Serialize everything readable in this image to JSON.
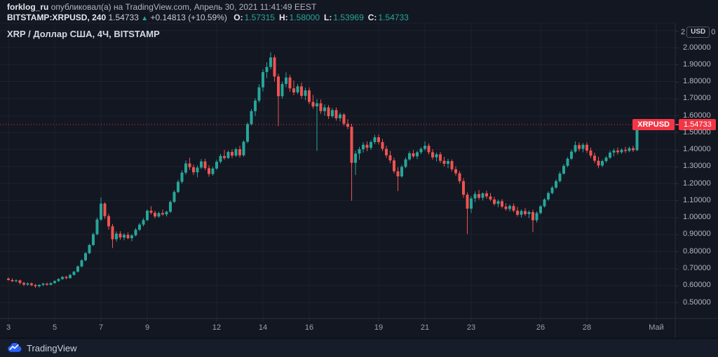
{
  "header": {
    "author": "forklog_ru",
    "published": "опубликовал(а) на TradingView.com, Апрель 30, 2021 11:41:49 EEST",
    "symbol_line": {
      "symbol_interval": "BITSTAMP:XRPUSD, 240",
      "last_price": "1.54733",
      "direction_icon": "▲",
      "change": "+0.14813 (+10.59%)",
      "ohlc": [
        {
          "label": "O:",
          "value": "1.57315"
        },
        {
          "label": "H:",
          "value": "1.58000"
        },
        {
          "label": "L:",
          "value": "1.53969"
        },
        {
          "label": "C:",
          "value": "1.54733"
        }
      ]
    }
  },
  "chart": {
    "title": "XRP / Доллар США, 4Ч, BITSTAMP",
    "currency_button": "USD",
    "axis_top_left_fragment": "2",
    "axis_top_right_fragment": "0",
    "price_label": {
      "symbol": "XRPUSD",
      "value": "1.54733"
    }
  },
  "footer": {
    "brand": "TradingView"
  },
  "colors": {
    "background": "#131722",
    "grid": "#1e222d",
    "axis_line": "#2a2e39",
    "axis_text": "#b2b5be",
    "up": "#26a69a",
    "down": "#ef5350",
    "accent_red": "#f23645",
    "logo_blue": "#2962ff"
  },
  "chart_data": {
    "type": "candlestick",
    "title": "XRP / Доллар США, 4Ч, BITSTAMP",
    "symbol": "BITSTAMP:XRPUSD",
    "interval": "240",
    "currency": "USD",
    "current_price": 1.54733,
    "legend_position": "none",
    "grid": true,
    "y_axis": {
      "min": 0.45,
      "max": 2.12,
      "tick_step": 0.1,
      "tick_min": 0.5,
      "tick_max": 2.0,
      "label_format": "5dp"
    },
    "x_axis": {
      "month": "Апрель 2021",
      "ticks": [
        {
          "label": "3",
          "day": 3
        },
        {
          "label": "5",
          "day": 5
        },
        {
          "label": "7",
          "day": 7
        },
        {
          "label": "9",
          "day": 9
        },
        {
          "label": "12",
          "day": 12
        },
        {
          "label": "14",
          "day": 14
        },
        {
          "label": "16",
          "day": 16
        },
        {
          "label": "19",
          "day": 19
        },
        {
          "label": "21",
          "day": 21
        },
        {
          "label": "23",
          "day": 23
        },
        {
          "label": "26",
          "day": 26
        },
        {
          "label": "28",
          "day": 28
        },
        {
          "label": "Май",
          "day": 31
        }
      ],
      "first_candle_day": 3,
      "candles_per_day": 6
    },
    "candles": [
      [
        0.64,
        0.648,
        0.628,
        0.632
      ],
      [
        0.632,
        0.642,
        0.62,
        0.625
      ],
      [
        0.625,
        0.636,
        0.618,
        0.63
      ],
      [
        0.63,
        0.634,
        0.606,
        0.615
      ],
      [
        0.615,
        0.622,
        0.596,
        0.605
      ],
      [
        0.605,
        0.618,
        0.598,
        0.612
      ],
      [
        0.612,
        0.618,
        0.595,
        0.602
      ],
      [
        0.602,
        0.61,
        0.585,
        0.595
      ],
      [
        0.595,
        0.608,
        0.588,
        0.603
      ],
      [
        0.603,
        0.616,
        0.596,
        0.61
      ],
      [
        0.61,
        0.617,
        0.598,
        0.604
      ],
      [
        0.604,
        0.618,
        0.6,
        0.614
      ],
      [
        0.614,
        0.63,
        0.61,
        0.626
      ],
      [
        0.626,
        0.642,
        0.62,
        0.638
      ],
      [
        0.638,
        0.655,
        0.632,
        0.65
      ],
      [
        0.65,
        0.658,
        0.636,
        0.643
      ],
      [
        0.643,
        0.668,
        0.64,
        0.662
      ],
      [
        0.662,
        0.686,
        0.658,
        0.681
      ],
      [
        0.681,
        0.718,
        0.676,
        0.712
      ],
      [
        0.712,
        0.754,
        0.706,
        0.748
      ],
      [
        0.748,
        0.796,
        0.742,
        0.79
      ],
      [
        0.79,
        0.845,
        0.784,
        0.838
      ],
      [
        0.838,
        0.91,
        0.832,
        0.902
      ],
      [
        0.902,
        1.0,
        0.895,
        0.988
      ],
      [
        0.988,
        1.118,
        0.98,
        1.082
      ],
      [
        1.082,
        1.09,
        0.992,
        1.008
      ],
      [
        1.008,
        1.022,
        0.928,
        0.948
      ],
      [
        0.948,
        0.962,
        0.82,
        0.872
      ],
      [
        0.872,
        0.918,
        0.858,
        0.905
      ],
      [
        0.905,
        0.92,
        0.868,
        0.882
      ],
      [
        0.882,
        0.908,
        0.866,
        0.898
      ],
      [
        0.898,
        0.912,
        0.872,
        0.878
      ],
      [
        0.878,
        0.902,
        0.86,
        0.895
      ],
      [
        0.895,
        0.938,
        0.888,
        0.928
      ],
      [
        0.928,
        0.968,
        0.92,
        0.958
      ],
      [
        0.958,
        0.996,
        0.948,
        0.985
      ],
      [
        0.985,
        1.048,
        0.978,
        1.04
      ],
      [
        1.04,
        1.066,
        1.018,
        1.028
      ],
      [
        1.028,
        1.04,
        0.994,
        1.006
      ],
      [
        1.006,
        1.034,
        0.998,
        1.026
      ],
      [
        1.026,
        1.046,
        1.01,
        1.018
      ],
      [
        1.018,
        1.04,
        1.006,
        1.034
      ],
      [
        1.034,
        1.1,
        1.026,
        1.092
      ],
      [
        1.092,
        1.16,
        1.086,
        1.15
      ],
      [
        1.15,
        1.222,
        1.144,
        1.21
      ],
      [
        1.21,
        1.278,
        1.2,
        1.264
      ],
      [
        1.264,
        1.336,
        1.252,
        1.318
      ],
      [
        1.318,
        1.352,
        1.28,
        1.296
      ],
      [
        1.296,
        1.312,
        1.25,
        1.266
      ],
      [
        1.266,
        1.306,
        1.236,
        1.294
      ],
      [
        1.294,
        1.344,
        1.284,
        1.33
      ],
      [
        1.33,
        1.346,
        1.278,
        1.29
      ],
      [
        1.29,
        1.308,
        1.24,
        1.256
      ],
      [
        1.256,
        1.298,
        1.246,
        1.288
      ],
      [
        1.288,
        1.34,
        1.28,
        1.328
      ],
      [
        1.328,
        1.374,
        1.318,
        1.362
      ],
      [
        1.362,
        1.398,
        1.338,
        1.35
      ],
      [
        1.35,
        1.394,
        1.344,
        1.386
      ],
      [
        1.386,
        1.402,
        1.35,
        1.364
      ],
      [
        1.364,
        1.412,
        1.356,
        1.402
      ],
      [
        1.402,
        1.422,
        1.352,
        1.366
      ],
      [
        1.366,
        1.454,
        1.358,
        1.446
      ],
      [
        1.446,
        1.56,
        1.438,
        1.55
      ],
      [
        1.55,
        1.638,
        1.542,
        1.626
      ],
      [
        1.626,
        1.702,
        1.598,
        1.688
      ],
      [
        1.688,
        1.784,
        1.676,
        1.766
      ],
      [
        1.766,
        1.872,
        1.742,
        1.856
      ],
      [
        1.856,
        1.914,
        1.82,
        1.886
      ],
      [
        1.886,
        1.972,
        1.872,
        1.942
      ],
      [
        1.942,
        1.956,
        1.8,
        1.83
      ],
      [
        1.83,
        1.846,
        1.538,
        1.714
      ],
      [
        1.714,
        1.8,
        1.7,
        1.786
      ],
      [
        1.786,
        1.854,
        1.766,
        1.824
      ],
      [
        1.824,
        1.84,
        1.74,
        1.76
      ],
      [
        1.76,
        1.806,
        1.72,
        1.736
      ],
      [
        1.736,
        1.786,
        1.726,
        1.772
      ],
      [
        1.772,
        1.794,
        1.7,
        1.716
      ],
      [
        1.716,
        1.764,
        1.69,
        1.748
      ],
      [
        1.748,
        1.766,
        1.666,
        1.68
      ],
      [
        1.68,
        1.722,
        1.64,
        1.654
      ],
      [
        1.654,
        1.696,
        1.392,
        1.672
      ],
      [
        1.672,
        1.694,
        1.61,
        1.626
      ],
      [
        1.626,
        1.666,
        1.6,
        1.648
      ],
      [
        1.648,
        1.662,
        1.58,
        1.596
      ],
      [
        1.596,
        1.644,
        1.586,
        1.632
      ],
      [
        1.632,
        1.648,
        1.57,
        1.584
      ],
      [
        1.584,
        1.618,
        1.566,
        1.606
      ],
      [
        1.606,
        1.614,
        1.54,
        1.552
      ],
      [
        1.552,
        1.578,
        1.52,
        1.534
      ],
      [
        1.534,
        1.552,
        1.098,
        1.322
      ],
      [
        1.322,
        1.394,
        1.25,
        1.376
      ],
      [
        1.376,
        1.416,
        1.34,
        1.402
      ],
      [
        1.402,
        1.444,
        1.382,
        1.428
      ],
      [
        1.428,
        1.448,
        1.39,
        1.41
      ],
      [
        1.41,
        1.454,
        1.398,
        1.444
      ],
      [
        1.444,
        1.486,
        1.432,
        1.472
      ],
      [
        1.472,
        1.488,
        1.43,
        1.444
      ],
      [
        1.444,
        1.462,
        1.39,
        1.404
      ],
      [
        1.404,
        1.422,
        1.35,
        1.366
      ],
      [
        1.366,
        1.392,
        1.32,
        1.336
      ],
      [
        1.336,
        1.352,
        1.26,
        1.272
      ],
      [
        1.272,
        1.296,
        1.156,
        1.242
      ],
      [
        1.242,
        1.31,
        1.234,
        1.298
      ],
      [
        1.298,
        1.354,
        1.29,
        1.342
      ],
      [
        1.342,
        1.39,
        1.334,
        1.378
      ],
      [
        1.378,
        1.398,
        1.35,
        1.36
      ],
      [
        1.36,
        1.392,
        1.344,
        1.384
      ],
      [
        1.384,
        1.414,
        1.372,
        1.404
      ],
      [
        1.404,
        1.448,
        1.392,
        1.422
      ],
      [
        1.422,
        1.436,
        1.37,
        1.384
      ],
      [
        1.384,
        1.402,
        1.34,
        1.354
      ],
      [
        1.354,
        1.382,
        1.33,
        1.372
      ],
      [
        1.372,
        1.386,
        1.32,
        1.334
      ],
      [
        1.334,
        1.358,
        1.3,
        1.316
      ],
      [
        1.316,
        1.346,
        1.29,
        1.332
      ],
      [
        1.332,
        1.342,
        1.27,
        1.284
      ],
      [
        1.284,
        1.302,
        1.246,
        1.26
      ],
      [
        1.26,
        1.274,
        1.2,
        1.214
      ],
      [
        1.214,
        1.232,
        1.116,
        1.134
      ],
      [
        1.134,
        1.148,
        0.902,
        1.052
      ],
      [
        1.052,
        1.126,
        1.026,
        1.112
      ],
      [
        1.112,
        1.154,
        1.09,
        1.138
      ],
      [
        1.138,
        1.162,
        1.104,
        1.116
      ],
      [
        1.116,
        1.148,
        1.1,
        1.142
      ],
      [
        1.142,
        1.158,
        1.11,
        1.124
      ],
      [
        1.124,
        1.144,
        1.096,
        1.106
      ],
      [
        1.106,
        1.122,
        1.07,
        1.08
      ],
      [
        1.08,
        1.106,
        1.06,
        1.096
      ],
      [
        1.096,
        1.108,
        1.054,
        1.064
      ],
      [
        1.064,
        1.084,
        1.04,
        1.05
      ],
      [
        1.05,
        1.078,
        1.036,
        1.068
      ],
      [
        1.068,
        1.082,
        1.03,
        1.04
      ],
      [
        1.04,
        1.062,
        1.006,
        1.016
      ],
      [
        1.016,
        1.048,
        1.0,
        1.038
      ],
      [
        1.038,
        1.056,
        1.01,
        1.02
      ],
      [
        1.02,
        1.042,
        0.996,
        1.032
      ],
      [
        1.032,
        1.046,
        0.915,
        0.984
      ],
      [
        0.984,
        1.036,
        0.97,
        1.026
      ],
      [
        1.026,
        1.074,
        1.018,
        1.066
      ],
      [
        1.066,
        1.114,
        1.058,
        1.106
      ],
      [
        1.106,
        1.154,
        1.098,
        1.144
      ],
      [
        1.144,
        1.186,
        1.136,
        1.176
      ],
      [
        1.176,
        1.224,
        1.168,
        1.214
      ],
      [
        1.214,
        1.27,
        1.206,
        1.258
      ],
      [
        1.258,
        1.314,
        1.252,
        1.304
      ],
      [
        1.304,
        1.356,
        1.296,
        1.346
      ],
      [
        1.346,
        1.4,
        1.338,
        1.388
      ],
      [
        1.388,
        1.448,
        1.38,
        1.426
      ],
      [
        1.426,
        1.442,
        1.39,
        1.404
      ],
      [
        1.404,
        1.438,
        1.384,
        1.428
      ],
      [
        1.428,
        1.442,
        1.38,
        1.394
      ],
      [
        1.394,
        1.412,
        1.35,
        1.364
      ],
      [
        1.364,
        1.382,
        1.32,
        1.334
      ],
      [
        1.334,
        1.358,
        1.29,
        1.306
      ],
      [
        1.306,
        1.342,
        1.296,
        1.332
      ],
      [
        1.332,
        1.362,
        1.322,
        1.352
      ],
      [
        1.352,
        1.394,
        1.344,
        1.382
      ],
      [
        1.382,
        1.406,
        1.36,
        1.394
      ],
      [
        1.394,
        1.412,
        1.37,
        1.384
      ],
      [
        1.384,
        1.408,
        1.374,
        1.398
      ],
      [
        1.398,
        1.416,
        1.38,
        1.392
      ],
      [
        1.392,
        1.418,
        1.384,
        1.408
      ],
      [
        1.408,
        1.422,
        1.386,
        1.396
      ],
      [
        1.396,
        1.58,
        1.39,
        1.562
      ],
      [
        1.57315,
        1.58,
        1.53969,
        1.54733
      ]
    ]
  }
}
